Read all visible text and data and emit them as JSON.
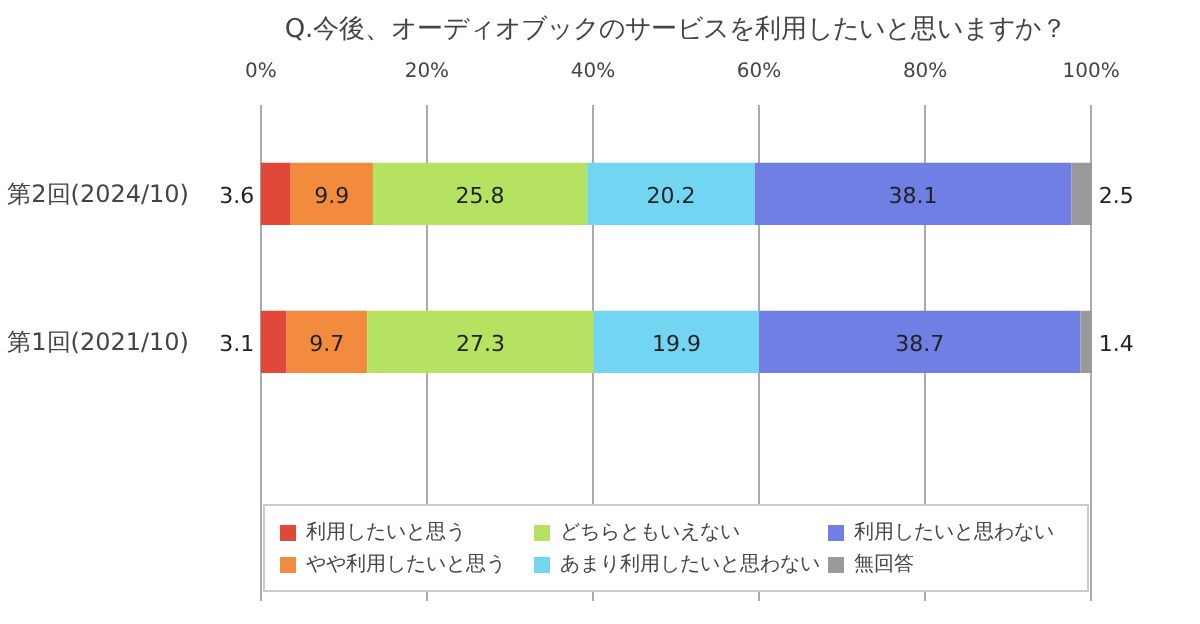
{
  "chart_data": {
    "type": "bar",
    "orientation": "horizontal",
    "stacked": true,
    "title": "Q.今後、オーディオブックのサービスを利用したいと思いますか？",
    "categories": [
      "第2回(2024/10)",
      "第1回(2021/10)"
    ],
    "series": [
      {
        "name": "利用したいと思う",
        "color": "#e0483a",
        "values": [
          3.6,
          3.1
        ]
      },
      {
        "name": "やや利用したいと思う",
        "color": "#f28b3e",
        "values": [
          9.9,
          9.7
        ]
      },
      {
        "name": "どちらともいえない",
        "color": "#b5e361",
        "values": [
          25.8,
          27.3
        ]
      },
      {
        "name": "あまり利用したいと思わない",
        "color": "#72d6f2",
        "values": [
          20.2,
          19.9
        ]
      },
      {
        "name": "利用したいと思わない",
        "color": "#6f7fe3",
        "values": [
          38.1,
          38.7
        ]
      },
      {
        "name": "無回答",
        "color": "#9a9a9a",
        "values": [
          2.5,
          1.4
        ]
      }
    ],
    "xlim": [
      0,
      100
    ],
    "xticks": [
      {
        "value": 0,
        "label": "0%"
      },
      {
        "value": 20,
        "label": "20%"
      },
      {
        "value": 40,
        "label": "40%"
      },
      {
        "value": 60,
        "label": "60%"
      },
      {
        "value": 80,
        "label": "80%"
      },
      {
        "value": 100,
        "label": "100%"
      }
    ],
    "grid": "x",
    "legend": "bottom",
    "data_labels": true
  }
}
